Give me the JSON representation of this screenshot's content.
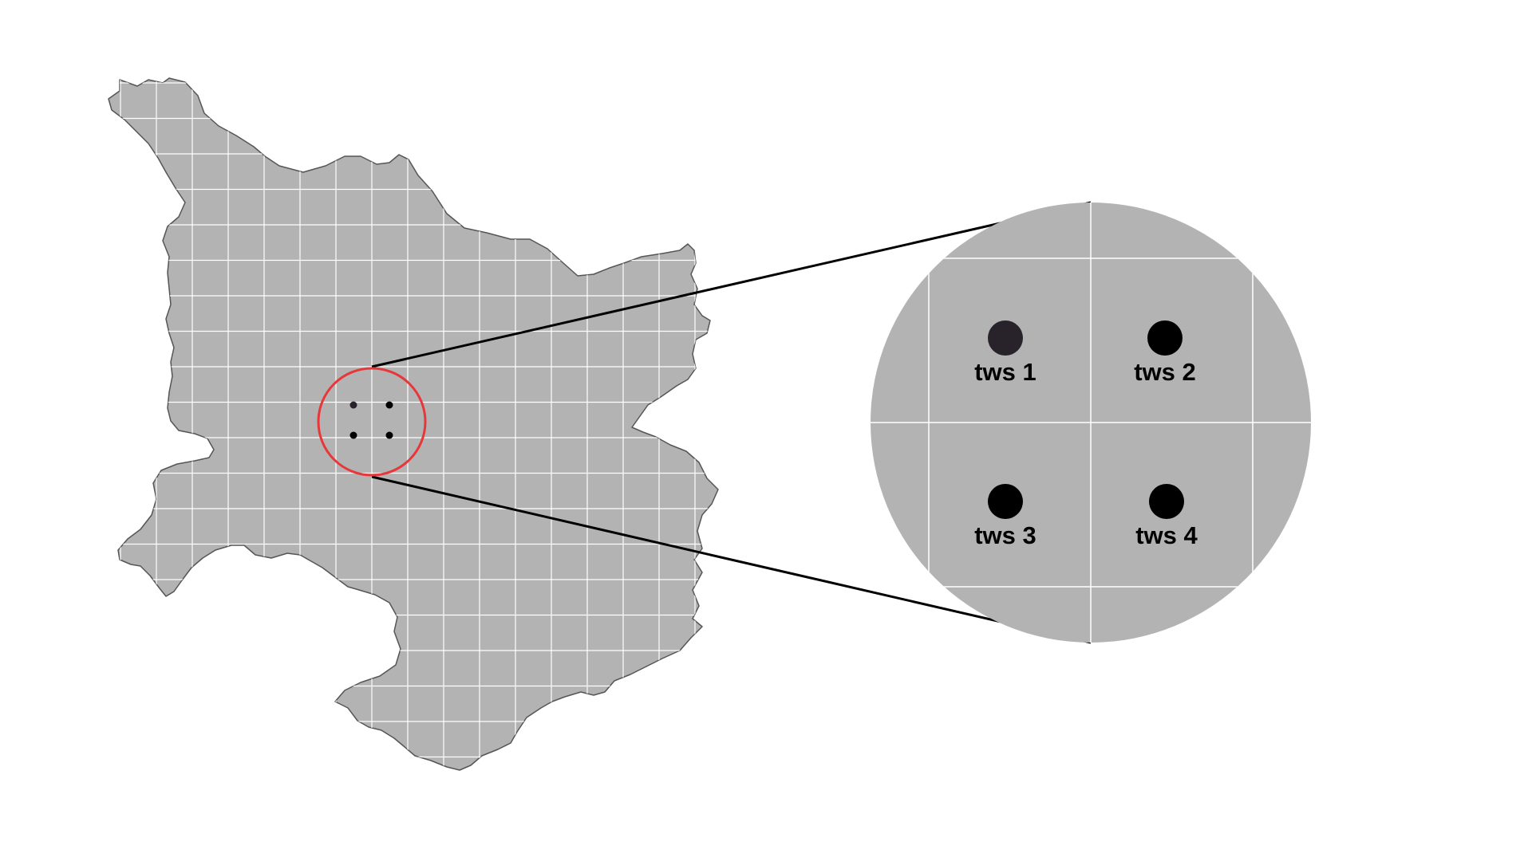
{
  "map": {
    "region_fill": "#b3b3b3",
    "region_outline": "#555555",
    "grid_color": "#ffffff",
    "highlight_color": "#e8373a",
    "connector_color": "#000000"
  },
  "stations": [
    {
      "label": "tws 1",
      "color": "#28232b"
    },
    {
      "label": "tws 2",
      "color": "#000000"
    },
    {
      "label": "tws 3",
      "color": "#000000"
    },
    {
      "label": "tws 4",
      "color": "#000000"
    }
  ]
}
